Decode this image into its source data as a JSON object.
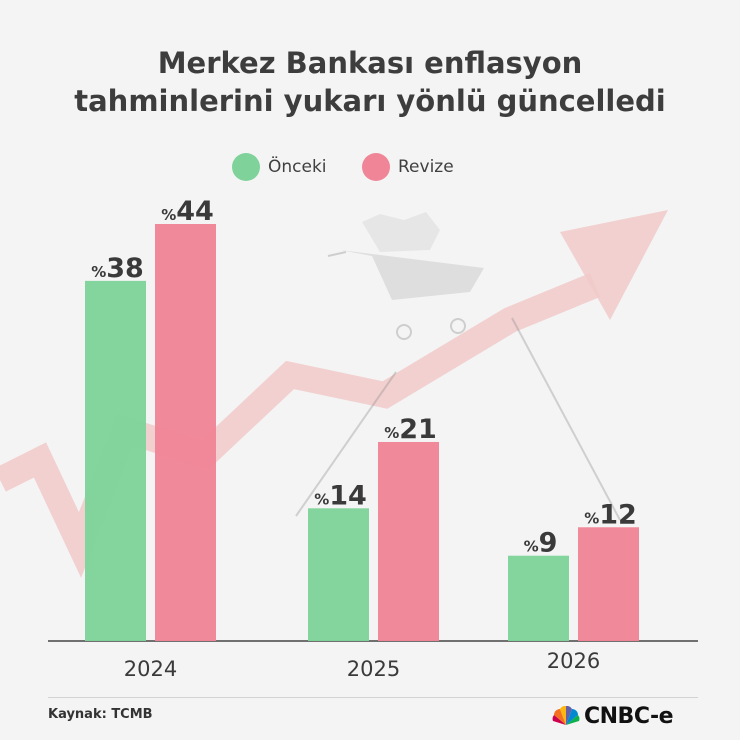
{
  "title_lines": [
    "Merkez Bankası enflasyon",
    "tahminlerini yukarı yönlü güncelledi"
  ],
  "legend": [
    {
      "label": "Önceki",
      "color": "#7fd39a"
    },
    {
      "label": "Revize",
      "color": "#f08597"
    }
  ],
  "source": "Kaynak: TCMB",
  "brand": "CNBC-e",
  "colors": {
    "onceki": "#7fd39a",
    "revize": "#f08597",
    "axis": "#444444",
    "arrow": "#f1c7c7",
    "background": "#f4f4f4"
  },
  "value_prefix": "%",
  "chart_data": {
    "type": "bar",
    "categories": [
      "2024",
      "2025",
      "2026"
    ],
    "series": [
      {
        "name": "Önceki",
        "values": [
          38,
          14,
          9
        ]
      },
      {
        "name": "Revize",
        "values": [
          44,
          21,
          12
        ]
      }
    ],
    "ylim": [
      0,
      44
    ],
    "grid": false,
    "legend_position": "top-center"
  }
}
